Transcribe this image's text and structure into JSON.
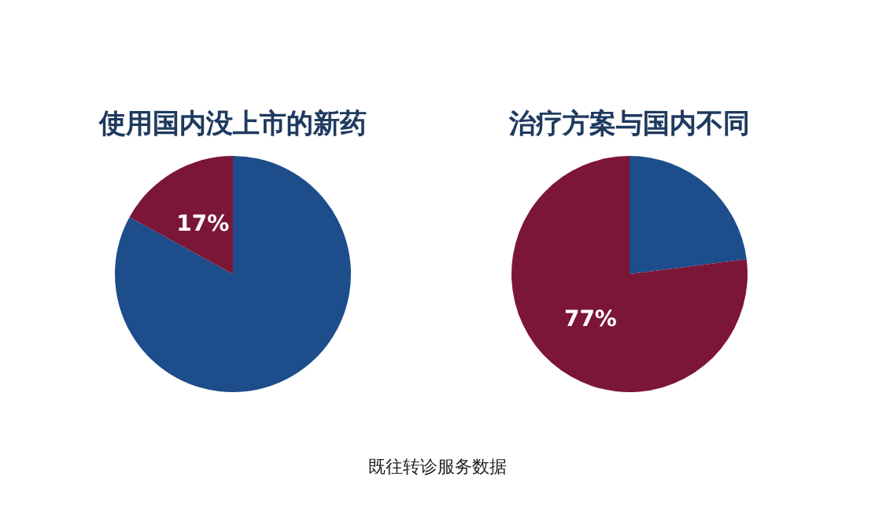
{
  "chart_data": [
    {
      "type": "pie",
      "title": "使用国内没上市的新药",
      "categories": [
        null,
        null
      ],
      "values": [
        83,
        17
      ],
      "colors": [
        "#1d4d8a",
        "#7c1636"
      ],
      "value_labels": [
        null,
        "17%"
      ],
      "annotations": [
        "既往转诊服务数据"
      ]
    },
    {
      "type": "pie",
      "title": "治疗方案与国内不同",
      "categories": [
        null,
        null
      ],
      "values": [
        23,
        77
      ],
      "colors": [
        "#1d4d8a",
        "#7c1636"
      ],
      "value_labels": [
        null,
        "77%"
      ]
    }
  ]
}
